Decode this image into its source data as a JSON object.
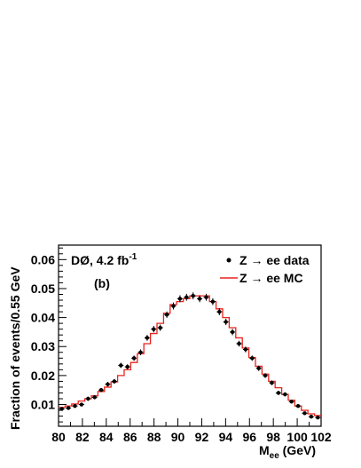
{
  "chart_data": {
    "type": "scatter",
    "xlabel_main": "M",
    "xlabel_sub": "ee",
    "xlabel_unit": " (GeV)",
    "ylabel": "Fraction of events/0.55 GeV",
    "xlim": [
      80,
      102
    ],
    "ylim": [
      0.0025,
      0.065
    ],
    "x_ticks": [
      80,
      82,
      84,
      86,
      88,
      90,
      92,
      94,
      96,
      98,
      100,
      102
    ],
    "y_ticks": [
      0.01,
      0.02,
      0.03,
      0.04,
      0.05,
      0.06
    ],
    "y_tick_labels": [
      "0.01",
      "0.02",
      "0.03",
      "0.04",
      "0.05",
      "0.06"
    ],
    "annotation_experiment": "DØ, 4.2 fb",
    "annotation_superscript": "-1",
    "annotation_panel": "(b)",
    "bin_width": 0.55,
    "series": [
      {
        "name": "Z → ee data",
        "style": "points",
        "color": "#000000",
        "x": [
          80.275,
          80.825,
          81.375,
          81.925,
          82.475,
          83.025,
          83.575,
          84.125,
          84.675,
          85.225,
          85.775,
          86.325,
          86.875,
          87.425,
          87.975,
          88.525,
          89.075,
          89.625,
          90.175,
          90.725,
          91.275,
          91.825,
          92.375,
          92.925,
          93.475,
          94.025,
          94.575,
          95.125,
          95.675,
          96.225,
          96.775,
          97.325,
          97.875,
          98.425,
          98.975,
          99.525,
          100.075,
          100.625,
          101.175,
          101.725
        ],
        "y": [
          0.0085,
          0.0088,
          0.0095,
          0.01,
          0.012,
          0.0125,
          0.015,
          0.017,
          0.018,
          0.0235,
          0.023,
          0.026,
          0.028,
          0.033,
          0.036,
          0.0365,
          0.041,
          0.044,
          0.0465,
          0.047,
          0.0475,
          0.0465,
          0.047,
          0.0455,
          0.042,
          0.0385,
          0.035,
          0.031,
          0.029,
          0.026,
          0.0225,
          0.02,
          0.0175,
          0.014,
          0.0135,
          0.011,
          0.0095,
          0.007,
          0.0058,
          0.0055
        ],
        "yerr": [
          0.0006,
          0.0006,
          0.0006,
          0.0006,
          0.0007,
          0.0007,
          0.0007,
          0.0008,
          0.0008,
          0.0009,
          0.0009,
          0.0009,
          0.001,
          0.001,
          0.0011,
          0.0011,
          0.0011,
          0.0012,
          0.0012,
          0.0012,
          0.0012,
          0.0012,
          0.0012,
          0.0012,
          0.0012,
          0.0011,
          0.0011,
          0.001,
          0.001,
          0.0009,
          0.0009,
          0.0008,
          0.0008,
          0.0007,
          0.0007,
          0.0006,
          0.0006,
          0.0005,
          0.0005,
          0.0005
        ]
      },
      {
        "name": "Z → ee MC",
        "style": "histogram",
        "color": "#e8231e",
        "bin_edges": [
          80,
          80.55,
          81.1,
          81.65,
          82.2,
          82.75,
          83.3,
          83.85,
          84.4,
          84.95,
          85.5,
          86.05,
          86.6,
          87.15,
          87.7,
          88.25,
          88.8,
          89.35,
          89.9,
          90.45,
          91.0,
          91.55,
          92.1,
          92.65,
          93.2,
          93.75,
          94.3,
          94.85,
          95.4,
          95.95,
          96.5,
          97.05,
          97.6,
          98.15,
          98.7,
          99.25,
          99.8,
          100.35,
          100.9,
          101.45,
          102
        ],
        "values": [
          0.009,
          0.0095,
          0.0102,
          0.0112,
          0.012,
          0.013,
          0.0145,
          0.016,
          0.0178,
          0.02,
          0.022,
          0.0245,
          0.0275,
          0.031,
          0.0345,
          0.038,
          0.0415,
          0.0445,
          0.0455,
          0.0465,
          0.0475,
          0.0475,
          0.0475,
          0.0455,
          0.043,
          0.04,
          0.0365,
          0.033,
          0.0295,
          0.0262,
          0.0232,
          0.0205,
          0.018,
          0.0158,
          0.0135,
          0.0115,
          0.0095,
          0.008,
          0.0068,
          0.0062
        ]
      }
    ],
    "legend": "top-right"
  }
}
